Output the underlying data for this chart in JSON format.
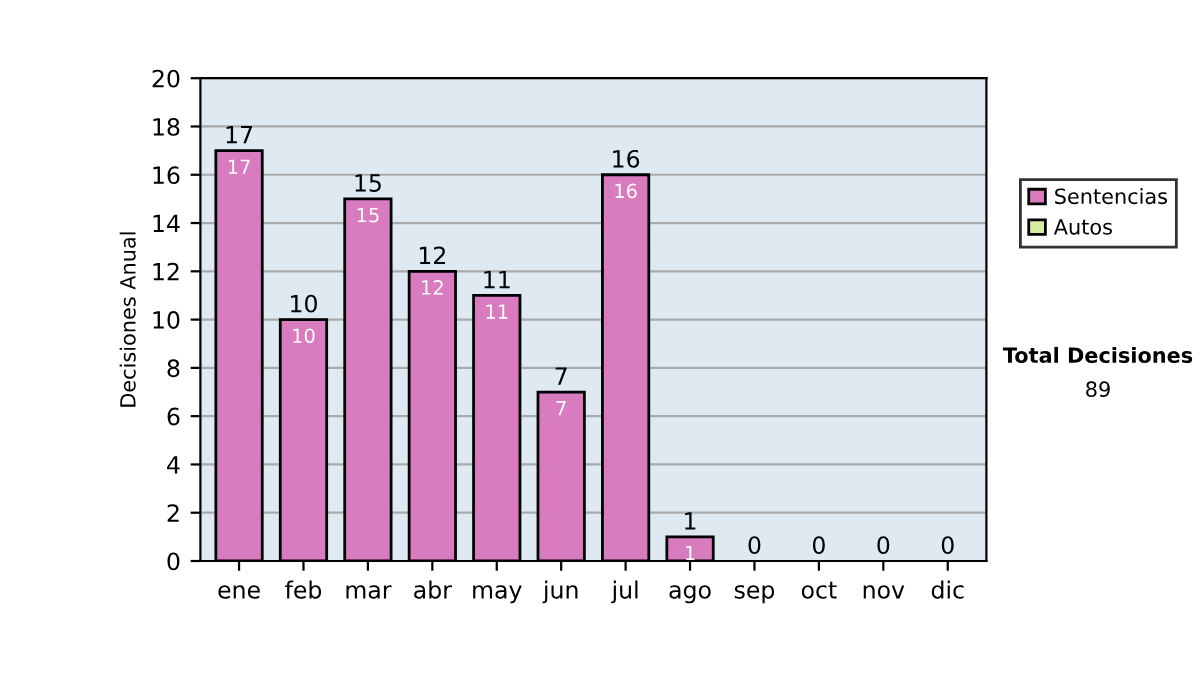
{
  "chart_data": {
    "type": "bar",
    "stacked": true,
    "ylabel": "Decisiones Anual",
    "categories": [
      "ene",
      "feb",
      "mar",
      "abr",
      "may",
      "jun",
      "jul",
      "ago",
      "sep",
      "oct",
      "nov",
      "dic"
    ],
    "series": [
      {
        "name": "Sentencias",
        "color": "#d87bbf",
        "values": [
          17,
          10,
          15,
          12,
          11,
          7,
          16,
          1,
          0,
          0,
          0,
          0
        ],
        "value_labels": [
          "17",
          "10",
          "15",
          "12",
          "11",
          "7",
          "16",
          "1",
          null,
          null,
          null,
          null
        ]
      },
      {
        "name": "Autos",
        "color": "#d4eba0",
        "values": [
          0,
          0,
          0,
          0,
          0,
          0,
          0,
          0,
          0,
          0,
          0,
          0
        ],
        "value_labels": [
          null,
          null,
          null,
          null,
          null,
          null,
          null,
          null,
          null,
          null,
          null,
          null
        ]
      }
    ],
    "totals": [
      "17",
      "10",
      "15",
      "12",
      "11",
      "7",
      "16",
      "1",
      "0",
      "0",
      "0",
      "0"
    ],
    "ylim": [
      0,
      20
    ],
    "yticks": [
      0,
      2,
      4,
      6,
      8,
      10,
      12,
      14,
      16,
      18,
      20
    ],
    "grid": "y",
    "legend": "right",
    "annotations": [
      "Total Decisiones",
      "89"
    ]
  }
}
